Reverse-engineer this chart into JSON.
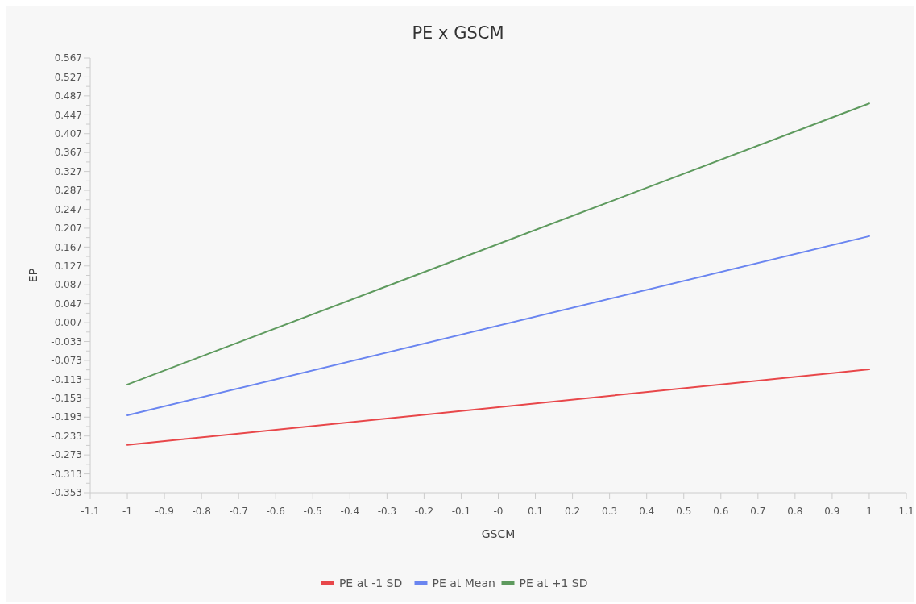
{
  "chart_data": {
    "type": "line",
    "title": "PE x GSCM",
    "xlabel": "GSCM",
    "ylabel": "EP",
    "legend": "bottom",
    "grid": false,
    "marker": "none",
    "line_style": "solid",
    "xlim": [
      -1.1,
      1.1
    ],
    "xticks": [
      -1.1,
      -1,
      -0.9,
      -0.8,
      -0.7,
      -0.6,
      -0.5,
      -0.4,
      -0.3,
      -0.2,
      -0.1,
      {
        "value": 0,
        "label": "-0"
      },
      0.1,
      0.2,
      0.3,
      0.4,
      0.5,
      0.6,
      0.7,
      0.8,
      0.9,
      1,
      1.1
    ],
    "ylim": [
      -0.353,
      0.567
    ],
    "yticks": [
      -0.353,
      {
        "value": -0.333,
        "label": null
      },
      -0.313,
      {
        "value": -0.293,
        "label": null
      },
      -0.273,
      {
        "value": -0.253,
        "label": null
      },
      -0.233,
      {
        "value": -0.213,
        "label": null
      },
      -0.193,
      {
        "value": -0.173,
        "label": null
      },
      -0.153,
      {
        "value": -0.133,
        "label": null
      },
      -0.113,
      {
        "value": -0.093,
        "label": null
      },
      -0.073,
      {
        "value": -0.053,
        "label": null
      },
      -0.033,
      {
        "value": -0.013,
        "label": null
      },
      0.007,
      {
        "value": 0.027,
        "label": null
      },
      0.047,
      {
        "value": 0.067,
        "label": null
      },
      0.087,
      {
        "value": 0.107,
        "label": null
      },
      0.127,
      {
        "value": 0.147,
        "label": null
      },
      0.167,
      {
        "value": 0.187,
        "label": null
      },
      0.207,
      {
        "value": 0.227,
        "label": null
      },
      0.247,
      {
        "value": 0.267,
        "label": null
      },
      0.287,
      {
        "value": 0.307,
        "label": null
      },
      0.327,
      {
        "value": 0.347,
        "label": null
      },
      0.367,
      {
        "value": 0.387,
        "label": null
      },
      0.407,
      {
        "value": 0.427,
        "label": null
      },
      0.447,
      {
        "value": 0.467,
        "label": null
      },
      0.487,
      {
        "value": 0.507,
        "label": null
      },
      0.527,
      {
        "value": 0.547,
        "label": null
      },
      0.567
    ],
    "x": [
      -1,
      1
    ],
    "series": [
      {
        "name": "PE at -1 SD",
        "color": "#e8474a",
        "values": [
          -0.252,
          -0.092
        ]
      },
      {
        "name": "PE at Mean",
        "color": "#6a85f0",
        "values": [
          -0.189,
          0.19
        ]
      },
      {
        "name": "PE at +1 SD",
        "color": "#5e9a5e",
        "values": [
          -0.124,
          0.471
        ]
      }
    ]
  }
}
